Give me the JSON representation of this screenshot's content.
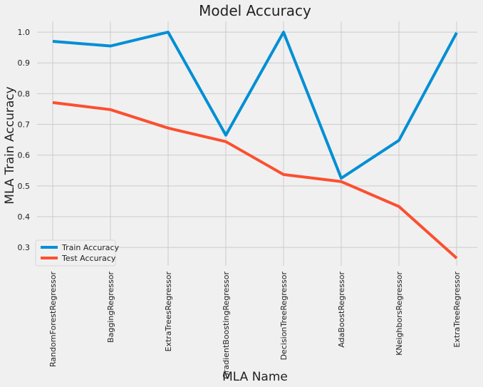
{
  "chart_data": {
    "type": "line",
    "title": "Model Accuracy",
    "xlabel": "MLA Name",
    "ylabel": "MLA Train Accuracy",
    "categories": [
      "RandomForestRegressor",
      "BaggingRegressor",
      "ExtraTreesRegressor",
      "GradientBoostingRegressor",
      "DecisionTreeRegressor",
      "AdaBoostRegressor",
      "KNeighborsRegressor",
      "ExtraTreeRegressor"
    ],
    "series": [
      {
        "name": "Train Accuracy",
        "color": "#008fd5",
        "values": [
          0.97,
          0.955,
          1.0,
          0.665,
          1.0,
          0.525,
          0.648,
          0.998
        ]
      },
      {
        "name": "Test Accuracy",
        "color": "#fc4f30",
        "values": [
          0.771,
          0.748,
          0.688,
          0.644,
          0.537,
          0.514,
          0.433,
          0.265
        ]
      }
    ],
    "ylim": [
      0.24,
      1.035
    ],
    "yticks": [
      "0.3",
      "0.4",
      "0.5",
      "0.6",
      "0.7",
      "0.8",
      "0.9",
      "1.0"
    ],
    "grid": true,
    "legend_position": "lower-left",
    "background": "#f0f0f0",
    "grid_color": "#cbcbcb"
  }
}
